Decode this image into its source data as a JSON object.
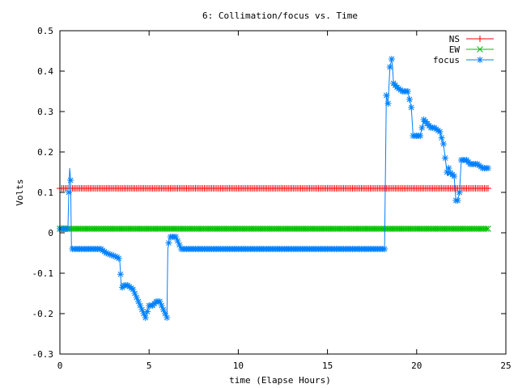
{
  "chart_data": {
    "type": "line",
    "title": "6: Collimation/focus vs. Time",
    "xlabel": "time (Elapse Hours)",
    "ylabel": "Volts",
    "xlim": [
      0,
      25
    ],
    "ylim": [
      -0.3,
      0.5
    ],
    "xticks": [
      "0",
      "5",
      "10",
      "15",
      "20",
      "25"
    ],
    "yticks": [
      "-0.3",
      "-0.2",
      "-0.1",
      "0",
      "0.1",
      "0.2",
      "0.3",
      "0.4",
      "0.5"
    ],
    "grid": false,
    "legend": "top-right",
    "series": [
      {
        "name": "NS",
        "color": "#ff0000",
        "marker": "plus",
        "x": [
          0,
          24
        ],
        "y": [
          0.11,
          0.11
        ]
      },
      {
        "name": "EW",
        "color": "#00c000",
        "marker": "cross",
        "x": [
          0,
          24
        ],
        "y": [
          0.01,
          0.01
        ]
      },
      {
        "name": "focus",
        "color": "#0080ff",
        "marker": "star",
        "x": [
          0,
          0.3,
          0.45,
          0.5,
          0.55,
          0.6,
          0.65,
          2.3,
          2.6,
          2.9,
          3.2,
          3.35,
          3.45,
          3.55,
          3.8,
          4.1,
          4.3,
          4.5,
          4.7,
          4.8,
          5.0,
          5.2,
          5.4,
          5.6,
          5.8,
          5.9,
          6.0,
          6.05,
          6.15,
          6.25,
          6.5,
          6.7,
          6.8,
          6.9,
          18.2,
          18.3,
          18.4,
          18.5,
          18.55,
          18.6,
          18.65,
          18.7,
          18.9,
          19.2,
          19.5,
          19.7,
          19.8,
          20.2,
          20.4,
          20.6,
          20.8,
          21.0,
          21.3,
          21.5,
          21.7,
          21.75,
          21.8,
          21.85,
          22.1,
          22.2,
          22.3,
          22.4,
          22.5,
          22.6,
          22.8,
          23.0,
          23.2,
          23.4,
          23.7,
          24.0
        ],
        "y": [
          0.01,
          0.01,
          0.01,
          0.1,
          0.16,
          0.13,
          -0.04,
          -0.04,
          -0.05,
          -0.055,
          -0.06,
          -0.065,
          -0.14,
          -0.13,
          -0.13,
          -0.14,
          -0.16,
          -0.18,
          -0.2,
          -0.21,
          -0.18,
          -0.18,
          -0.17,
          -0.17,
          -0.19,
          -0.2,
          -0.21,
          -0.04,
          -0.01,
          -0.01,
          -0.01,
          -0.03,
          -0.04,
          -0.04,
          -0.04,
          0.34,
          0.32,
          0.41,
          0.42,
          0.43,
          0.41,
          0.37,
          0.36,
          0.35,
          0.35,
          0.31,
          0.24,
          0.24,
          0.28,
          0.27,
          0.26,
          0.26,
          0.25,
          0.22,
          0.15,
          0.14,
          0.16,
          0.15,
          0.14,
          0.08,
          0.08,
          0.1,
          0.18,
          0.18,
          0.18,
          0.17,
          0.17,
          0.17,
          0.16,
          0.16
        ]
      }
    ]
  }
}
